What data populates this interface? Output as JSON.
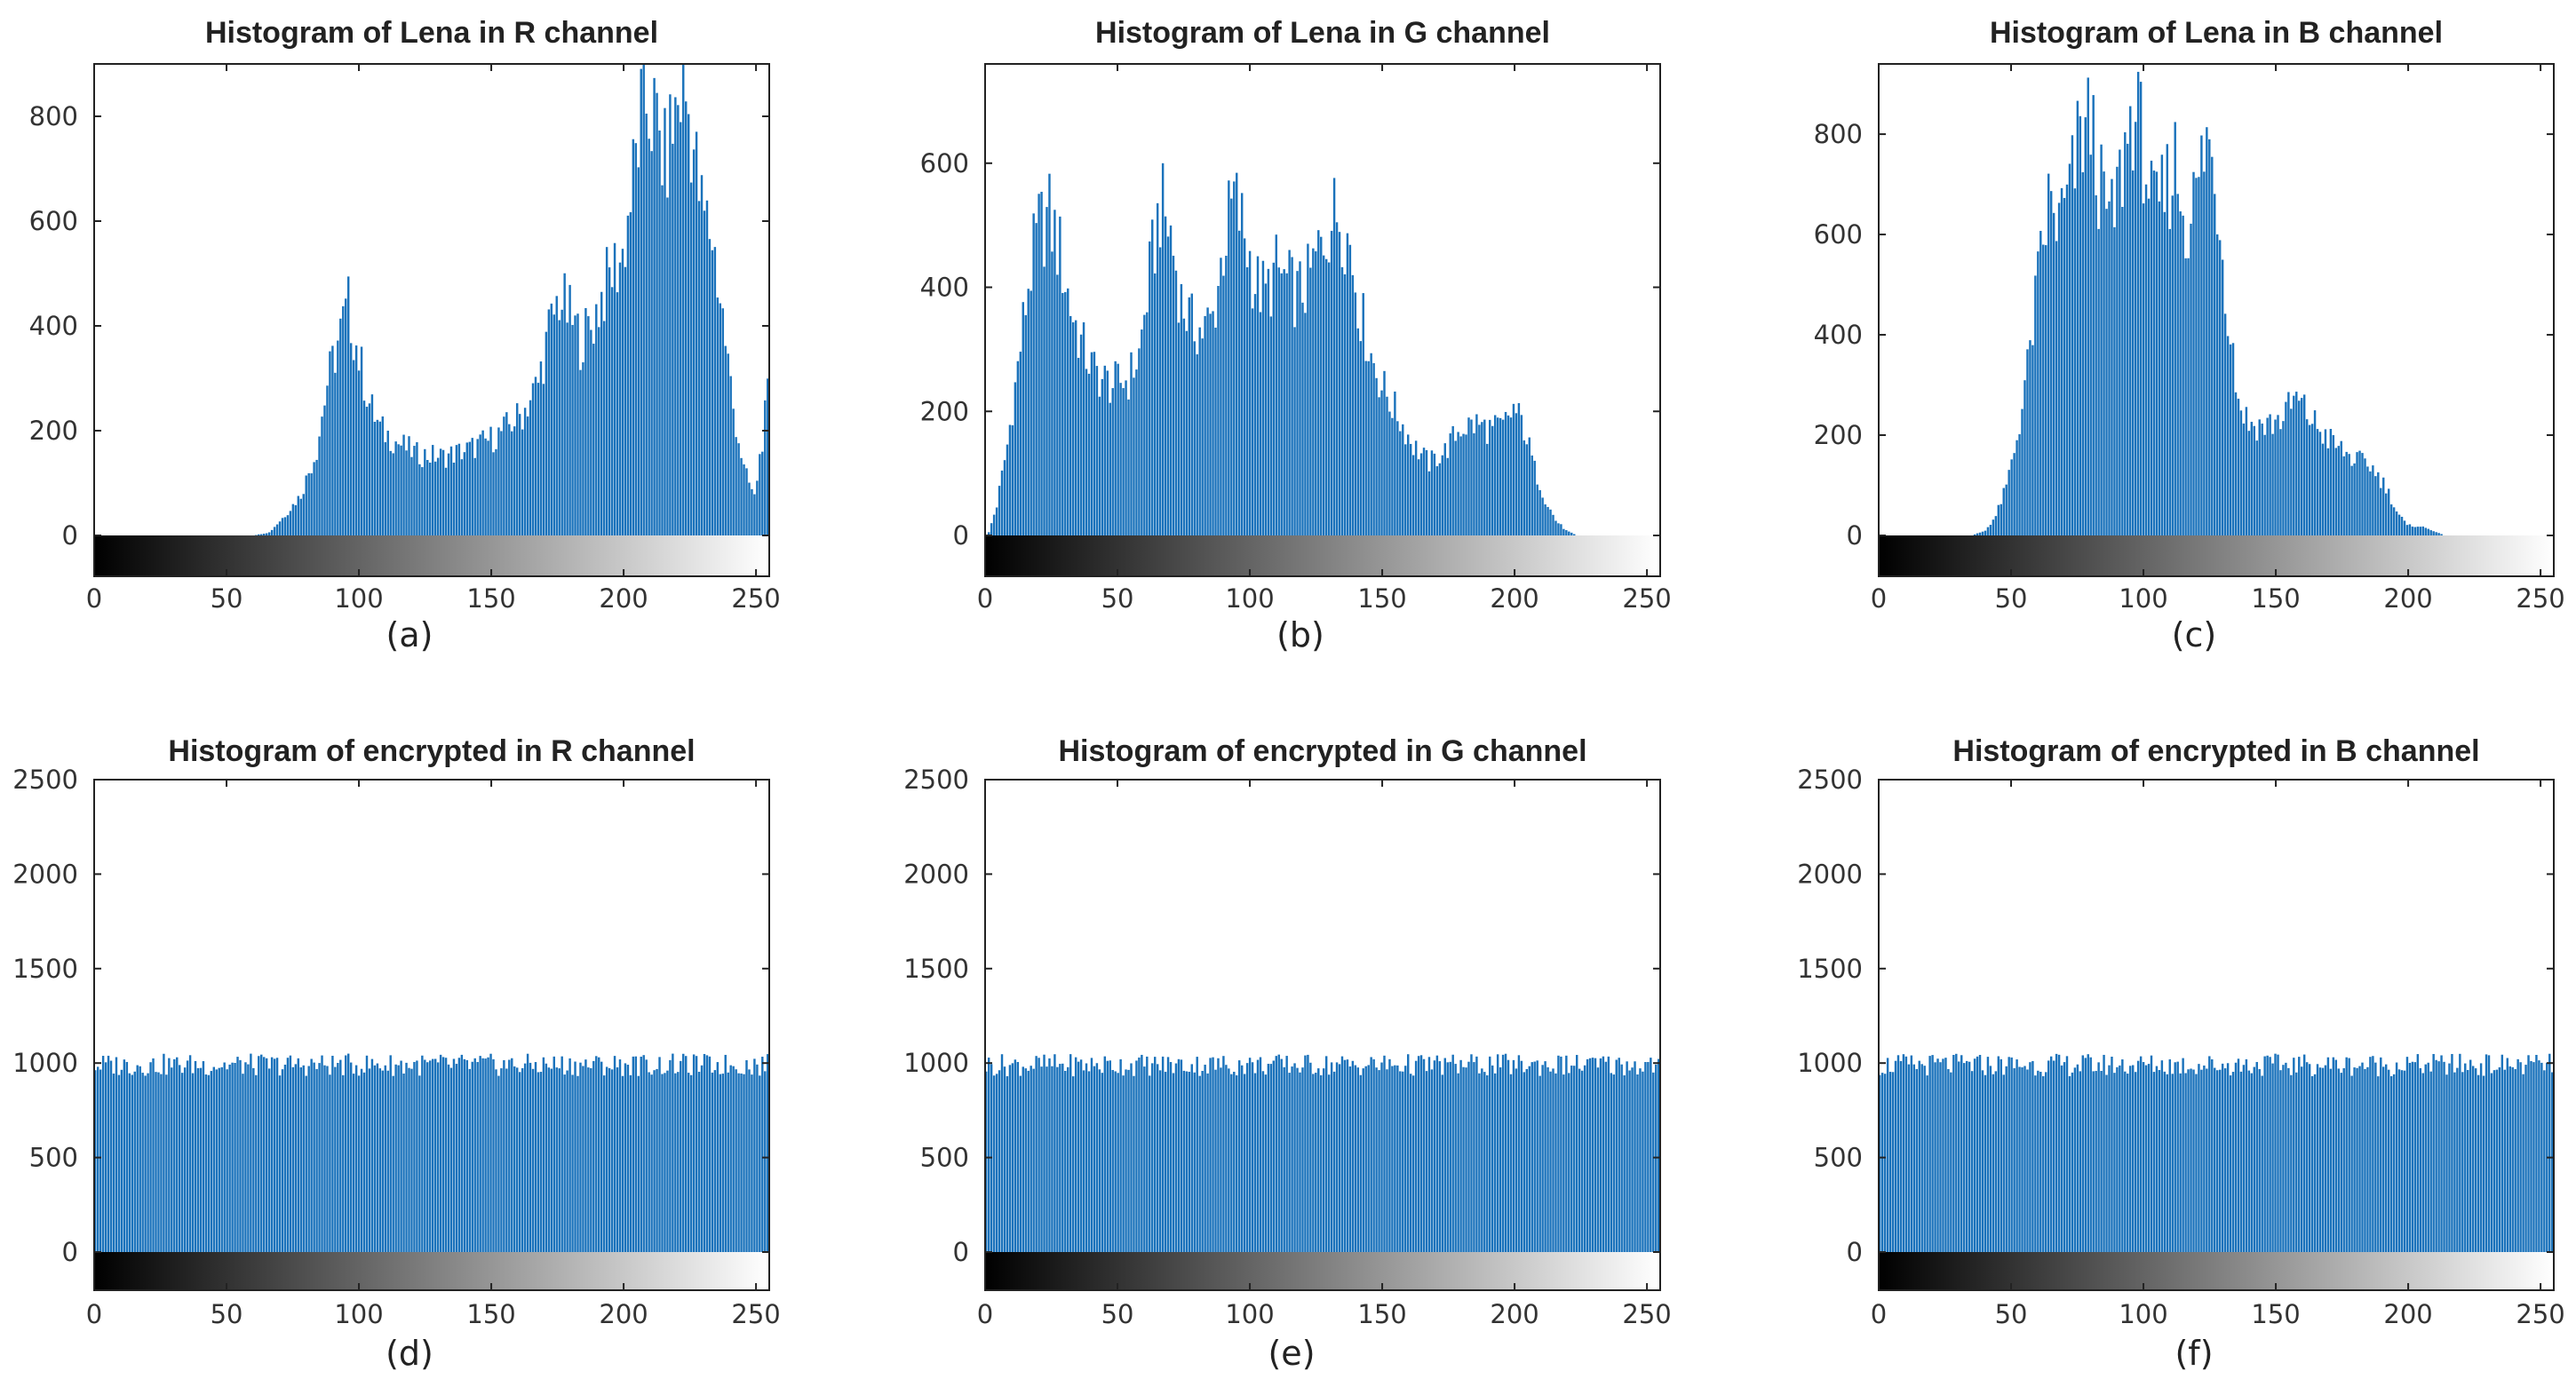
{
  "page": {
    "background": "#ffffff"
  },
  "colors": {
    "bar": "#1a72bb",
    "axis": "#222222",
    "text": "#222222"
  },
  "chart_data": [
    {
      "type": "bar",
      "title": "Histogram of Lena in R channel",
      "caption": "(a)",
      "xlim": [
        0,
        255
      ],
      "ylim": [
        -80,
        900
      ],
      "xticks": [
        0,
        50,
        100,
        150,
        200,
        250
      ],
      "yticks": [
        0,
        200,
        400,
        600,
        800
      ],
      "bins": 256,
      "profile": [
        [
          0,
          0
        ],
        [
          60,
          0
        ],
        [
          66,
          6
        ],
        [
          72,
          40
        ],
        [
          78,
          80
        ],
        [
          84,
          170
        ],
        [
          88,
          300
        ],
        [
          92,
          380
        ],
        [
          96,
          450
        ],
        [
          100,
          350
        ],
        [
          104,
          260
        ],
        [
          108,
          210
        ],
        [
          114,
          185
        ],
        [
          122,
          160
        ],
        [
          132,
          155
        ],
        [
          142,
          170
        ],
        [
          152,
          195
        ],
        [
          162,
          240
        ],
        [
          168,
          300
        ],
        [
          172,
          400
        ],
        [
          176,
          470
        ],
        [
          180,
          430
        ],
        [
          184,
          385
        ],
        [
          188,
          410
        ],
        [
          192,
          470
        ],
        [
          196,
          520
        ],
        [
          200,
          550
        ],
        [
          204,
          700
        ],
        [
          208,
          860
        ],
        [
          212,
          820
        ],
        [
          216,
          730
        ],
        [
          220,
          830
        ],
        [
          223,
          890
        ],
        [
          226,
          800
        ],
        [
          230,
          640
        ],
        [
          234,
          590
        ],
        [
          238,
          430
        ],
        [
          242,
          250
        ],
        [
          246,
          130
        ],
        [
          250,
          75
        ],
        [
          255,
          270
        ]
      ],
      "note": "counts per intensity value (approximate, read from axes)"
    },
    {
      "type": "bar",
      "title": "Histogram of Lena in G channel",
      "caption": "(b)",
      "xlim": [
        0,
        255
      ],
      "ylim": [
        -60,
        760
      ],
      "xticks": [
        0,
        50,
        100,
        150,
        200,
        250
      ],
      "yticks": [
        0,
        200,
        400,
        600
      ],
      "bins": 256,
      "profile": [
        [
          0,
          0
        ],
        [
          1,
          5
        ],
        [
          4,
          50
        ],
        [
          8,
          150
        ],
        [
          12,
          280
        ],
        [
          16,
          420
        ],
        [
          20,
          510
        ],
        [
          24,
          530
        ],
        [
          28,
          470
        ],
        [
          32,
          380
        ],
        [
          36,
          320
        ],
        [
          40,
          280
        ],
        [
          44,
          260
        ],
        [
          48,
          250
        ],
        [
          54,
          260
        ],
        [
          58,
          300
        ],
        [
          62,
          430
        ],
        [
          66,
          550
        ],
        [
          70,
          500
        ],
        [
          74,
          390
        ],
        [
          78,
          350
        ],
        [
          82,
          340
        ],
        [
          86,
          360
        ],
        [
          90,
          480
        ],
        [
          94,
          560
        ],
        [
          98,
          500
        ],
        [
          102,
          420
        ],
        [
          106,
          400
        ],
        [
          110,
          440
        ],
        [
          114,
          420
        ],
        [
          118,
          400
        ],
        [
          122,
          420
        ],
        [
          126,
          470
        ],
        [
          130,
          520
        ],
        [
          134,
          540
        ],
        [
          138,
          480
        ],
        [
          142,
          370
        ],
        [
          146,
          300
        ],
        [
          150,
          250
        ],
        [
          156,
          200
        ],
        [
          162,
          150
        ],
        [
          168,
          120
        ],
        [
          174,
          140
        ],
        [
          180,
          180
        ],
        [
          186,
          185
        ],
        [
          192,
          175
        ],
        [
          196,
          180
        ],
        [
          200,
          210
        ],
        [
          204,
          180
        ],
        [
          208,
          110
        ],
        [
          212,
          60
        ],
        [
          216,
          25
        ],
        [
          220,
          8
        ],
        [
          224,
          0
        ],
        [
          255,
          0
        ]
      ],
      "note": "counts per intensity value (approximate, read from axes)"
    },
    {
      "type": "bar",
      "title": "Histogram of Lena in B channel",
      "caption": "(c)",
      "xlim": [
        0,
        255
      ],
      "ylim": [
        -80,
        940
      ],
      "xticks": [
        0,
        50,
        100,
        150,
        200,
        250
      ],
      "yticks": [
        0,
        200,
        400,
        600,
        800
      ],
      "bins": 256,
      "profile": [
        [
          0,
          0
        ],
        [
          35,
          0
        ],
        [
          40,
          10
        ],
        [
          44,
          40
        ],
        [
          48,
          100
        ],
        [
          52,
          200
        ],
        [
          56,
          340
        ],
        [
          60,
          520
        ],
        [
          64,
          680
        ],
        [
          68,
          640
        ],
        [
          72,
          700
        ],
        [
          76,
          820
        ],
        [
          80,
          850
        ],
        [
          84,
          700
        ],
        [
          88,
          640
        ],
        [
          92,
          760
        ],
        [
          96,
          880
        ],
        [
          100,
          800
        ],
        [
          104,
          650
        ],
        [
          108,
          700
        ],
        [
          112,
          770
        ],
        [
          116,
          640
        ],
        [
          120,
          700
        ],
        [
          124,
          820
        ],
        [
          128,
          700
        ],
        [
          132,
          470
        ],
        [
          136,
          280
        ],
        [
          140,
          230
        ],
        [
          146,
          225
        ],
        [
          152,
          240
        ],
        [
          158,
          280
        ],
        [
          162,
          250
        ],
        [
          168,
          210
        ],
        [
          174,
          180
        ],
        [
          180,
          155
        ],
        [
          186,
          145
        ],
        [
          192,
          100
        ],
        [
          196,
          50
        ],
        [
          200,
          20
        ],
        [
          204,
          20
        ],
        [
          210,
          10
        ],
        [
          214,
          0
        ],
        [
          255,
          0
        ]
      ],
      "note": "counts per intensity value (approximate, read from axes)"
    },
    {
      "type": "bar",
      "title": "Histogram of encrypted in R channel",
      "caption": "(d)",
      "xlim": [
        0,
        255
      ],
      "ylim": [
        -170,
        2500
      ],
      "xticks": [
        0,
        50,
        100,
        150,
        200,
        250
      ],
      "yticks": [
        0,
        500,
        1000,
        1500,
        2000,
        2500
      ],
      "bins": 256,
      "profile": [
        [
          0,
          1010
        ],
        [
          100,
          1010
        ],
        [
          255,
          1010
        ]
      ],
      "note": "approximately uniform around 1000 counts"
    },
    {
      "type": "bar",
      "title": "Histogram of encrypted in G channel",
      "caption": "(e)",
      "xlim": [
        0,
        255
      ],
      "ylim": [
        -170,
        2500
      ],
      "xticks": [
        0,
        50,
        100,
        150,
        200,
        250
      ],
      "yticks": [
        0,
        500,
        1000,
        1500,
        2000,
        2500
      ],
      "bins": 256,
      "profile": [
        [
          0,
          1010
        ],
        [
          70,
          1010
        ],
        [
          255,
          1010
        ]
      ],
      "note": "approximately uniform around 1000 counts"
    },
    {
      "type": "bar",
      "title": "Histogram of encrypted in B channel",
      "caption": "(f)",
      "xlim": [
        0,
        255
      ],
      "ylim": [
        -170,
        2500
      ],
      "xticks": [
        0,
        50,
        100,
        150,
        200,
        250
      ],
      "yticks": [
        0,
        500,
        1000,
        1500,
        2000,
        2500
      ],
      "bins": 256,
      "profile": [
        [
          0,
          1010
        ],
        [
          200,
          1010
        ],
        [
          255,
          1010
        ]
      ],
      "note": "approximately uniform around 1000 counts"
    }
  ]
}
